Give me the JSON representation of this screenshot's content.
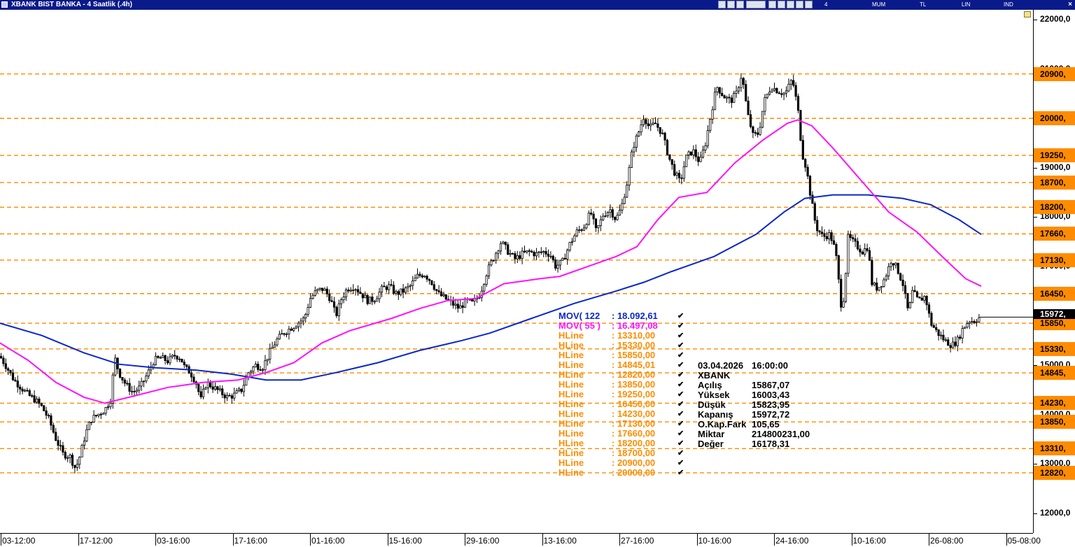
{
  "window": {
    "title": "XBANK BIST BANKA - 4 Saatlik (.4h)",
    "close_glyph": "×",
    "toolbar_labels": [
      "4 Saatlik",
      "MUM",
      "TL",
      "LIN",
      "IND"
    ]
  },
  "colors": {
    "hline": "#ff8c00",
    "mov122": "#0a28c8",
    "mov55": "#ff10ff",
    "candle": "#000000"
  },
  "chart_data": {
    "type": "candlestick",
    "ylim": [
      11600,
      22200
    ],
    "yticks": [
      {
        "v": 22000,
        "label": "22000,0"
      },
      {
        "v": 21000,
        "label": "21000,0"
      },
      {
        "v": 19000,
        "label": "19000,0"
      },
      {
        "v": 18000,
        "label": "18000,0"
      },
      {
        "v": 17000,
        "label": "17000,0"
      },
      {
        "v": 16000,
        "label": "16000,0"
      },
      {
        "v": 15000,
        "label": "15000,0"
      },
      {
        "v": 14000,
        "label": "14000,0"
      },
      {
        "v": 13000,
        "label": "13000,0"
      },
      {
        "v": 12000,
        "label": "12000,0"
      }
    ],
    "xticks": [
      "03-12:00",
      "17-12:00",
      "03-16:00",
      "17-16:00",
      "01-16:00",
      "15-16:00",
      "29-16:00",
      "13-16:00",
      "27-16:00",
      "10-16:00",
      "24-16:00",
      "10-16:00",
      "26-08:00",
      "05-08:00"
    ],
    "last_price": {
      "value": 15972.72,
      "label": "15972,"
    },
    "hlines": [
      {
        "value": 20900,
        "badge": "20900,"
      },
      {
        "value": 20000,
        "badge": "20000,"
      },
      {
        "value": 19250,
        "badge": "19250,"
      },
      {
        "value": 18700,
        "badge": "18700,"
      },
      {
        "value": 18200,
        "badge": "18200,"
      },
      {
        "value": 17660,
        "badge": "17660,"
      },
      {
        "value": 17130,
        "badge": "17130,"
      },
      {
        "value": 16450,
        "badge": "16450,"
      },
      {
        "value": 15850,
        "badge": "15850,"
      },
      {
        "value": 15330,
        "badge": "15330,"
      },
      {
        "value": 14845,
        "badge": "14845,"
      },
      {
        "value": 14230,
        "badge": "14230,"
      },
      {
        "value": 13850,
        "badge": "13850,"
      },
      {
        "value": 13310,
        "badge": "13310,"
      },
      {
        "value": 12820,
        "badge": "12820,"
      }
    ],
    "price_path": [
      [
        0,
        15180
      ],
      [
        10,
        14950
      ],
      [
        20,
        14700
      ],
      [
        30,
        14550
      ],
      [
        40,
        14400
      ],
      [
        50,
        14300
      ],
      [
        60,
        14150
      ],
      [
        70,
        13900
      ],
      [
        80,
        13500
      ],
      [
        90,
        13200
      ],
      [
        100,
        13150
      ],
      [
        108,
        12900
      ],
      [
        115,
        13200
      ],
      [
        122,
        13600
      ],
      [
        130,
        13900
      ],
      [
        140,
        14000
      ],
      [
        150,
        14100
      ],
      [
        158,
        14300
      ],
      [
        164,
        15150
      ],
      [
        170,
        14850
      ],
      [
        180,
        14600
      ],
      [
        190,
        14450
      ],
      [
        200,
        14550
      ],
      [
        210,
        14800
      ],
      [
        220,
        15100
      ],
      [
        230,
        15150
      ],
      [
        240,
        15080
      ],
      [
        250,
        15200
      ],
      [
        258,
        15150
      ],
      [
        264,
        14950
      ],
      [
        272,
        14850
      ],
      [
        280,
        14650
      ],
      [
        287,
        14300
      ],
      [
        295,
        14650
      ],
      [
        305,
        14550
      ],
      [
        315,
        14450
      ],
      [
        325,
        14350
      ],
      [
        335,
        14400
      ],
      [
        345,
        14500
      ],
      [
        355,
        14850
      ],
      [
        365,
        15000
      ],
      [
        375,
        14950
      ],
      [
        385,
        15250
      ],
      [
        395,
        15500
      ],
      [
        405,
        15650
      ],
      [
        415,
        15750
      ],
      [
        425,
        15850
      ],
      [
        435,
        15950
      ],
      [
        443,
        16350
      ],
      [
        452,
        16500
      ],
      [
        462,
        16550
      ],
      [
        472,
        16350
      ],
      [
        480,
        16000
      ],
      [
        488,
        16350
      ],
      [
        496,
        16550
      ],
      [
        506,
        16600
      ],
      [
        516,
        16450
      ],
      [
        526,
        16300
      ],
      [
        536,
        16350
      ],
      [
        546,
        16550
      ],
      [
        556,
        16600
      ],
      [
        566,
        16450
      ],
      [
        576,
        16500
      ],
      [
        586,
        16600
      ],
      [
        596,
        16800
      ],
      [
        606,
        16850
      ],
      [
        616,
        16700
      ],
      [
        626,
        16450
      ],
      [
        636,
        16350
      ],
      [
        646,
        16250
      ],
      [
        656,
        16150
      ],
      [
        666,
        16300
      ],
      [
        676,
        16250
      ],
      [
        686,
        16450
      ],
      [
        696,
        16900
      ],
      [
        706,
        17200
      ],
      [
        716,
        17500
      ],
      [
        726,
        17300
      ],
      [
        736,
        17150
      ],
      [
        746,
        17250
      ],
      [
        756,
        17300
      ],
      [
        766,
        17250
      ],
      [
        776,
        17300
      ],
      [
        786,
        17250
      ],
      [
        794,
        17000
      ],
      [
        804,
        17100
      ],
      [
        814,
        17450
      ],
      [
        824,
        17700
      ],
      [
        834,
        17800
      ],
      [
        844,
        18100
      ],
      [
        852,
        17700
      ],
      [
        862,
        18050
      ],
      [
        872,
        18150
      ],
      [
        880,
        17950
      ],
      [
        888,
        18200
      ],
      [
        896,
        18700
      ],
      [
        904,
        19400
      ],
      [
        912,
        19700
      ],
      [
        920,
        20050
      ],
      [
        928,
        19800
      ],
      [
        936,
        19900
      ],
      [
        946,
        19700
      ],
      [
        956,
        19200
      ],
      [
        964,
        18900
      ],
      [
        972,
        18700
      ],
      [
        980,
        19200
      ],
      [
        990,
        19350
      ],
      [
        1000,
        19100
      ],
      [
        1008,
        19500
      ],
      [
        1016,
        20100
      ],
      [
        1024,
        20650
      ],
      [
        1034,
        20450
      ],
      [
        1044,
        20350
      ],
      [
        1052,
        20500
      ],
      [
        1060,
        20900
      ],
      [
        1068,
        20100
      ],
      [
        1076,
        19650
      ],
      [
        1084,
        19700
      ],
      [
        1092,
        20350
      ],
      [
        1102,
        20650
      ],
      [
        1112,
        20550
      ],
      [
        1122,
        20500
      ],
      [
        1132,
        20800
      ],
      [
        1140,
        20200
      ],
      [
        1146,
        19300
      ],
      [
        1152,
        19000
      ],
      [
        1158,
        18450
      ],
      [
        1166,
        17800
      ],
      [
        1176,
        17600
      ],
      [
        1186,
        17650
      ],
      [
        1194,
        17300
      ],
      [
        1202,
        16200
      ],
      [
        1206,
        16400
      ],
      [
        1212,
        17600
      ],
      [
        1222,
        17450
      ],
      [
        1232,
        17300
      ],
      [
        1240,
        17400
      ],
      [
        1246,
        16650
      ],
      [
        1254,
        16550
      ],
      [
        1264,
        16750
      ],
      [
        1274,
        17150
      ],
      [
        1282,
        16950
      ],
      [
        1290,
        16650
      ],
      [
        1298,
        16050
      ],
      [
        1304,
        16500
      ],
      [
        1312,
        16300
      ],
      [
        1322,
        16400
      ],
      [
        1330,
        15850
      ],
      [
        1340,
        15650
      ],
      [
        1350,
        15500
      ],
      [
        1360,
        15400
      ],
      [
        1368,
        15500
      ],
      [
        1376,
        15750
      ],
      [
        1384,
        15900
      ],
      [
        1392,
        15900
      ],
      [
        1400,
        15972
      ]
    ],
    "series": [
      {
        "name": "MOV 122",
        "values_at_x": [
          [
            0,
            15850
          ],
          [
            60,
            15600
          ],
          [
            120,
            15250
          ],
          [
            170,
            15020
          ],
          [
            220,
            14950
          ],
          [
            280,
            14900
          ],
          [
            330,
            14820
          ],
          [
            380,
            14700
          ],
          [
            430,
            14700
          ],
          [
            480,
            14850
          ],
          [
            540,
            15050
          ],
          [
            600,
            15300
          ],
          [
            660,
            15500
          ],
          [
            700,
            15650
          ],
          [
            760,
            15950
          ],
          [
            820,
            16250
          ],
          [
            880,
            16500
          ],
          [
            920,
            16680
          ],
          [
            960,
            16900
          ],
          [
            1020,
            17200
          ],
          [
            1080,
            17650
          ],
          [
            1120,
            18100
          ],
          [
            1150,
            18380
          ],
          [
            1190,
            18450
          ],
          [
            1240,
            18450
          ],
          [
            1290,
            18380
          ],
          [
            1330,
            18250
          ],
          [
            1370,
            17950
          ],
          [
            1402,
            17650
          ]
        ]
      },
      {
        "name": "MOV 55",
        "values_at_x": [
          [
            0,
            15450
          ],
          [
            40,
            15100
          ],
          [
            80,
            14650
          ],
          [
            120,
            14350
          ],
          [
            150,
            14230
          ],
          [
            190,
            14370
          ],
          [
            240,
            14550
          ],
          [
            290,
            14650
          ],
          [
            340,
            14700
          ],
          [
            380,
            14850
          ],
          [
            420,
            15050
          ],
          [
            460,
            15450
          ],
          [
            500,
            15700
          ],
          [
            560,
            15950
          ],
          [
            600,
            16150
          ],
          [
            640,
            16310
          ],
          [
            680,
            16350
          ],
          [
            720,
            16650
          ],
          [
            770,
            16750
          ],
          [
            800,
            16800
          ],
          [
            840,
            17000
          ],
          [
            880,
            17200
          ],
          [
            910,
            17400
          ],
          [
            940,
            17950
          ],
          [
            970,
            18400
          ],
          [
            1010,
            18500
          ],
          [
            1050,
            19100
          ],
          [
            1090,
            19560
          ],
          [
            1125,
            19900
          ],
          [
            1140,
            19970
          ],
          [
            1160,
            19850
          ],
          [
            1190,
            19400
          ],
          [
            1230,
            18750
          ],
          [
            1270,
            18100
          ],
          [
            1310,
            17700
          ],
          [
            1350,
            17150
          ],
          [
            1380,
            16750
          ],
          [
            1402,
            16600
          ]
        ]
      }
    ]
  },
  "legend": {
    "mov122": {
      "name": "MOV( 122",
      "value": ": 18.092,61"
    },
    "mov55": {
      "name": "MOV( 55 )",
      "value": ": 16.497,08"
    },
    "hline_rows": [
      {
        "name": "HLine",
        "value": ": 13310,00"
      },
      {
        "name": "HLine",
        "value": ": 15330,00"
      },
      {
        "name": "HLine",
        "value": ": 15850,00"
      },
      {
        "name": "HLine",
        "value": ": 14845,01"
      },
      {
        "name": "HLine",
        "value": ": 12820,00"
      },
      {
        "name": "HLine",
        "value": ": 13850,00"
      },
      {
        "name": "HLine",
        "value": ": 19250,00"
      },
      {
        "name": "HLine",
        "value": ": 16450,00"
      },
      {
        "name": "HLine",
        "value": ": 14230,00"
      },
      {
        "name": "HLine",
        "value": ": 17130,00"
      },
      {
        "name": "HLine",
        "value": ": 17660,00"
      },
      {
        "name": "HLine",
        "value": ": 18200,00"
      },
      {
        "name": "HLine",
        "value": ": 18700,00"
      },
      {
        "name": "HLine",
        "value": ": 20900,00"
      },
      {
        "name": "HLine",
        "value": ": 20000,00"
      }
    ],
    "check_glyph": "✔"
  },
  "info_panel": {
    "date": "03.04.2026",
    "time": "16:00:00",
    "symbol": "XBANK",
    "rows": [
      {
        "k": "Açılış",
        "v": "15867,07"
      },
      {
        "k": "Yüksek",
        "v": "16003,43"
      },
      {
        "k": "Düşük",
        "v": "15823,95"
      },
      {
        "k": "Kapanış",
        "v": "15972,72"
      },
      {
        "k": "O.Kap.Fark",
        "v": "105,65"
      },
      {
        "k": "Miktar",
        "v": "214800231,00"
      },
      {
        "k": "Değer",
        "v": "16178,31"
      }
    ]
  }
}
